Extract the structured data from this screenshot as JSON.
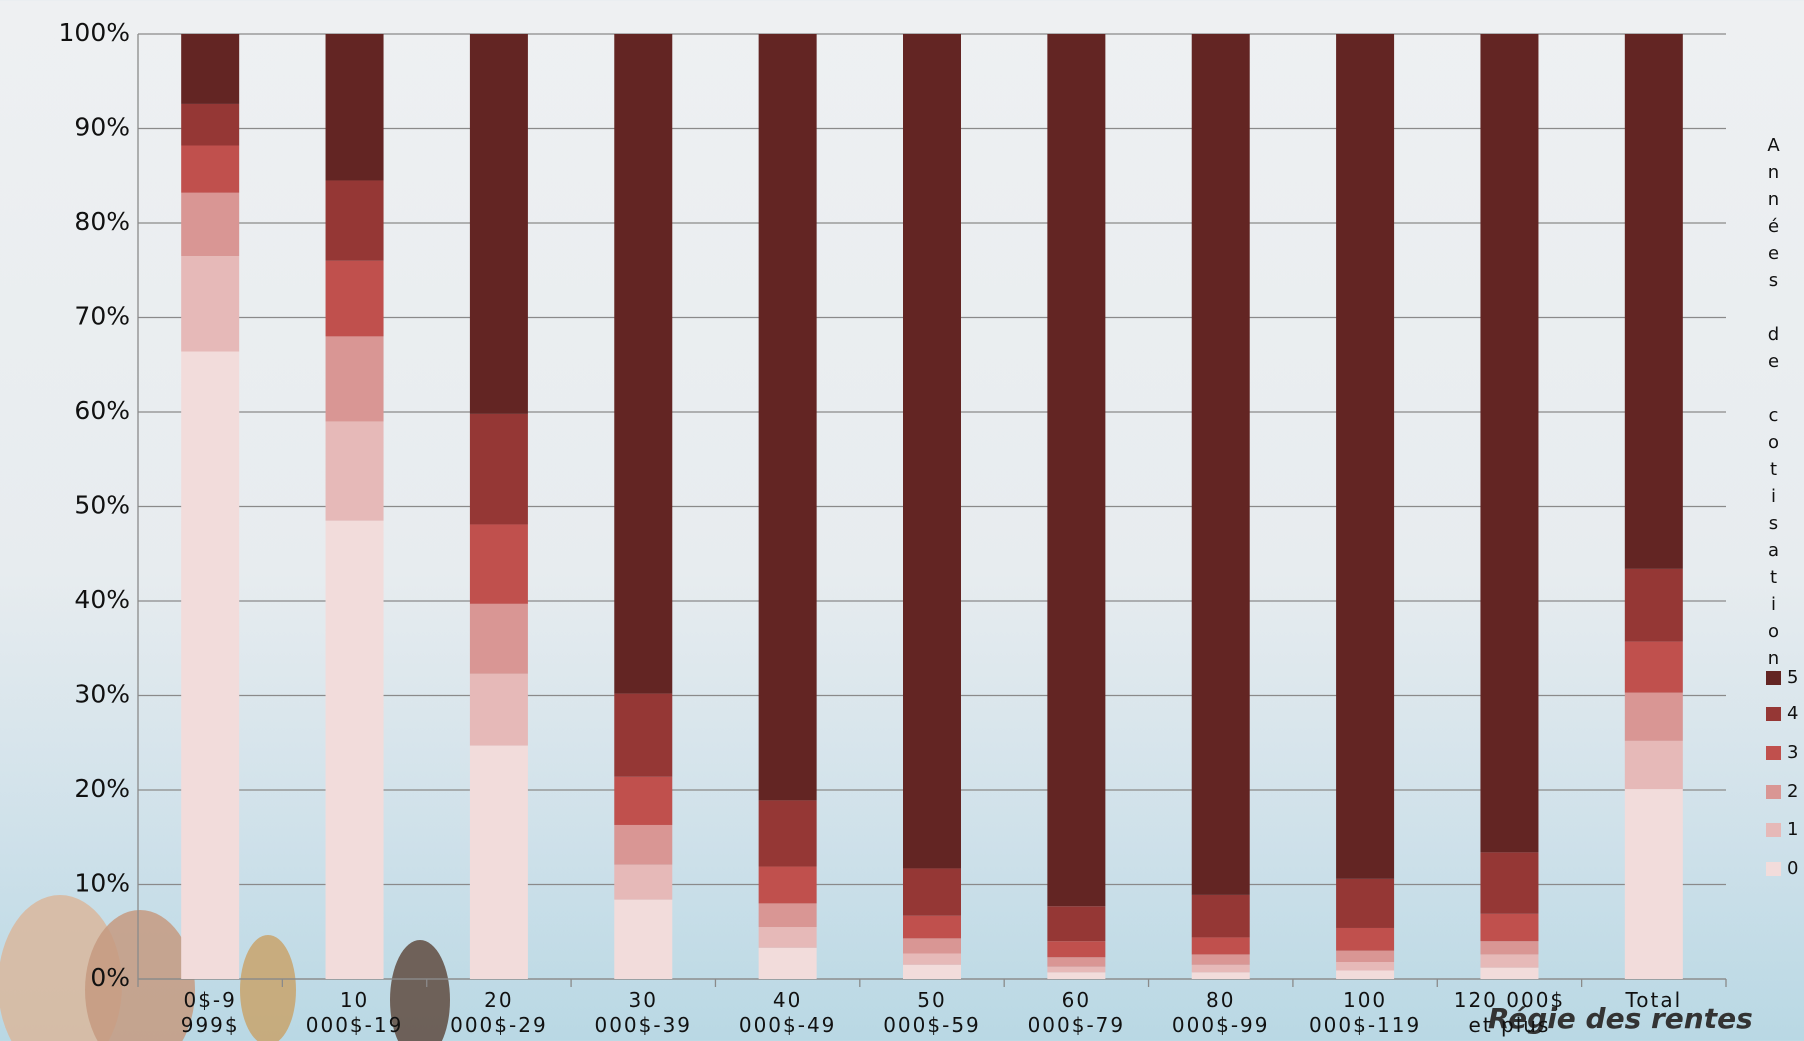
{
  "chart_data": {
    "type": "stacked_bar_100",
    "categories": [
      "0$-9 999$",
      "10 000$-19 999$",
      "20 000$-29 999$",
      "30 000$-39 999$",
      "40 000$-49 999$",
      "50 000$-59 999$",
      "60 000$-79 999$",
      "80 000$-99 999$",
      "100 000$-119 999$",
      "120 000$ et plus",
      "Total"
    ],
    "series": [
      {
        "name": "0",
        "color": "#f2dcdb",
        "values": [
          66.4,
          48.5,
          24.7,
          8.4,
          3.3,
          1.5,
          0.7,
          0.7,
          0.9,
          1.2,
          20.1
        ]
      },
      {
        "name": "1",
        "color": "#e6b9b8",
        "values": [
          10.1,
          10.5,
          7.6,
          3.7,
          2.2,
          1.2,
          0.6,
          0.8,
          0.9,
          1.4,
          5.1
        ]
      },
      {
        "name": "2",
        "color": "#d99694",
        "values": [
          6.7,
          9.0,
          7.4,
          4.2,
          2.5,
          1.6,
          1.0,
          1.1,
          1.2,
          1.4,
          5.1
        ]
      },
      {
        "name": "3",
        "color": "#c0504d",
        "values": [
          5.0,
          8.0,
          8.4,
          5.1,
          3.9,
          2.4,
          1.7,
          1.8,
          2.4,
          2.9,
          5.4
        ]
      },
      {
        "name": "4",
        "color": "#953735",
        "values": [
          4.4,
          8.5,
          11.7,
          8.8,
          7.0,
          5.0,
          3.7,
          4.5,
          5.2,
          6.5,
          7.7
        ]
      },
      {
        "name": "5",
        "color": "#632523",
        "values": [
          7.4,
          15.5,
          40.2,
          69.8,
          81.1,
          88.3,
          92.3,
          91.1,
          89.4,
          86.6,
          56.6
        ]
      }
    ],
    "legend_title": "Années de cotisation",
    "legend_position": "right",
    "ylim": [
      0,
      100
    ],
    "yticks": [
      {
        "value": 0,
        "label": "0%"
      },
      {
        "value": 10,
        "label": "10%"
      },
      {
        "value": 20,
        "label": "20%"
      },
      {
        "value": 30,
        "label": "30%"
      },
      {
        "value": 40,
        "label": "40%"
      },
      {
        "value": 50,
        "label": "50%"
      },
      {
        "value": 60,
        "label": "60%"
      },
      {
        "value": 70,
        "label": "70%"
      },
      {
        "value": 80,
        "label": "80%"
      },
      {
        "value": 90,
        "label": "90%"
      },
      {
        "value": 100,
        "label": "100%"
      }
    ],
    "grid": true
  },
  "logo_text": "Régie des rentes"
}
